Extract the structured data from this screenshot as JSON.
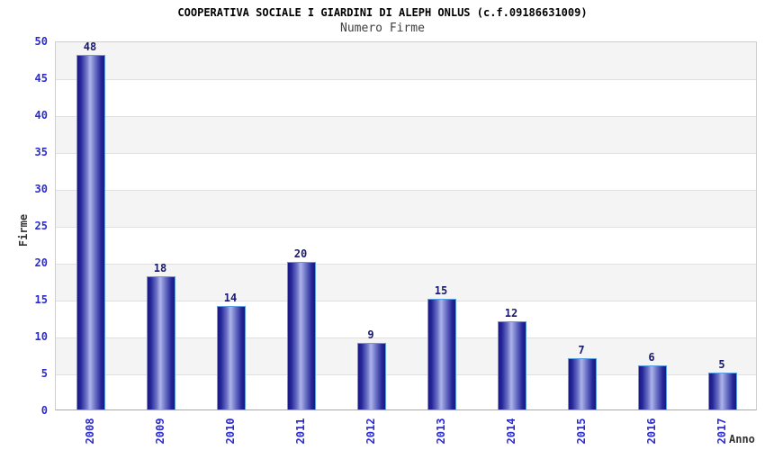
{
  "header": {
    "title": "COOPERATIVA SOCIALE I GIARDINI DI ALEPH ONLUS (c.f.09186631009)",
    "subtitle": "Numero Firme"
  },
  "chart_data": {
    "type": "bar",
    "title": "COOPERATIVA SOCIALE I GIARDINI DI ALEPH ONLUS (c.f.09186631009)",
    "subtitle": "Numero Firme",
    "categories": [
      "2008",
      "2009",
      "2010",
      "2011",
      "2012",
      "2013",
      "2014",
      "2015",
      "2016",
      "2017"
    ],
    "values": [
      48,
      18,
      14,
      20,
      9,
      15,
      12,
      7,
      6,
      5
    ],
    "xlabel": "Anno",
    "ylabel": "Firme",
    "ylim": [
      0,
      50
    ],
    "yticks": [
      0,
      5,
      10,
      15,
      20,
      25,
      30,
      35,
      40,
      45,
      50
    ],
    "grid": true,
    "legend": false,
    "band_fill": "alternating gray/white horizontal bands, gray on top band"
  },
  "colors": {
    "title": "#000000",
    "subtitle": "#3f3f3f",
    "tick_blue": "#2b2bd5",
    "value_navy": "#191970",
    "bar_dark": "#191980",
    "bar_light": "#adb3ea",
    "bar_border": "#5b9fe3",
    "band_gray": "#f4f4f4",
    "grid_line": "#e0e0e0",
    "axis_title": "#333333"
  }
}
